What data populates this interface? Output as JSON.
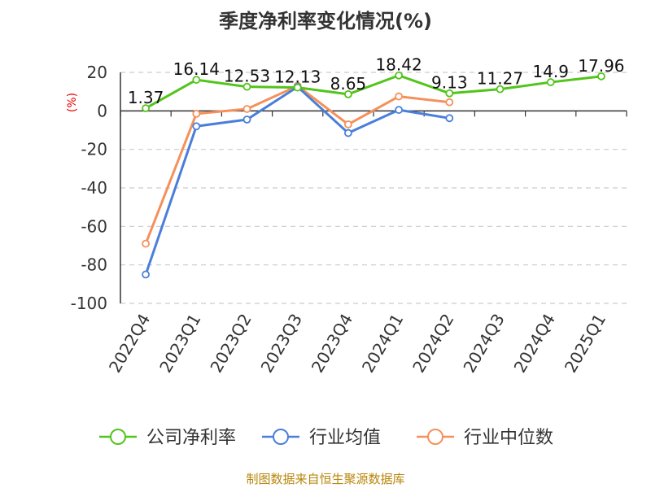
{
  "chart_data": {
    "type": "line",
    "title": "季度净利率变化情况(%)",
    "ylabel": "(%)",
    "ylim": [
      -100,
      20
    ],
    "yticks": [
      20,
      0,
      -20,
      -40,
      -60,
      -80,
      -100
    ],
    "grid": true,
    "legend_placement": "bottom",
    "categories": [
      "2022Q4",
      "2023Q1",
      "2023Q2",
      "2023Q3",
      "2023Q4",
      "2024Q1",
      "2024Q2",
      "2024Q3",
      "2024Q4",
      "2025Q1"
    ],
    "series": [
      {
        "name": "公司净利率",
        "color": "#52c41a",
        "values": [
          1.37,
          16.14,
          12.53,
          12.13,
          8.65,
          18.42,
          9.13,
          11.27,
          14.9,
          17.96
        ],
        "labels": [
          "1.37",
          "16.14",
          "12.53",
          "12.13",
          "8.65",
          "18.42",
          "9.13",
          "11.27",
          "14.9",
          "17.96"
        ]
      },
      {
        "name": "行业均值",
        "color": "#4a7fd9",
        "values": [
          -85,
          -8,
          -4.5,
          12.5,
          -11.5,
          0.5,
          -3.8,
          null,
          null,
          null
        ]
      },
      {
        "name": "行业中位数",
        "color": "#f5905a",
        "values": [
          -69,
          -1.5,
          1,
          13,
          -7,
          7.5,
          4.5,
          null,
          null,
          null
        ]
      }
    ]
  },
  "source": "制图数据来自恒生聚源数据库"
}
